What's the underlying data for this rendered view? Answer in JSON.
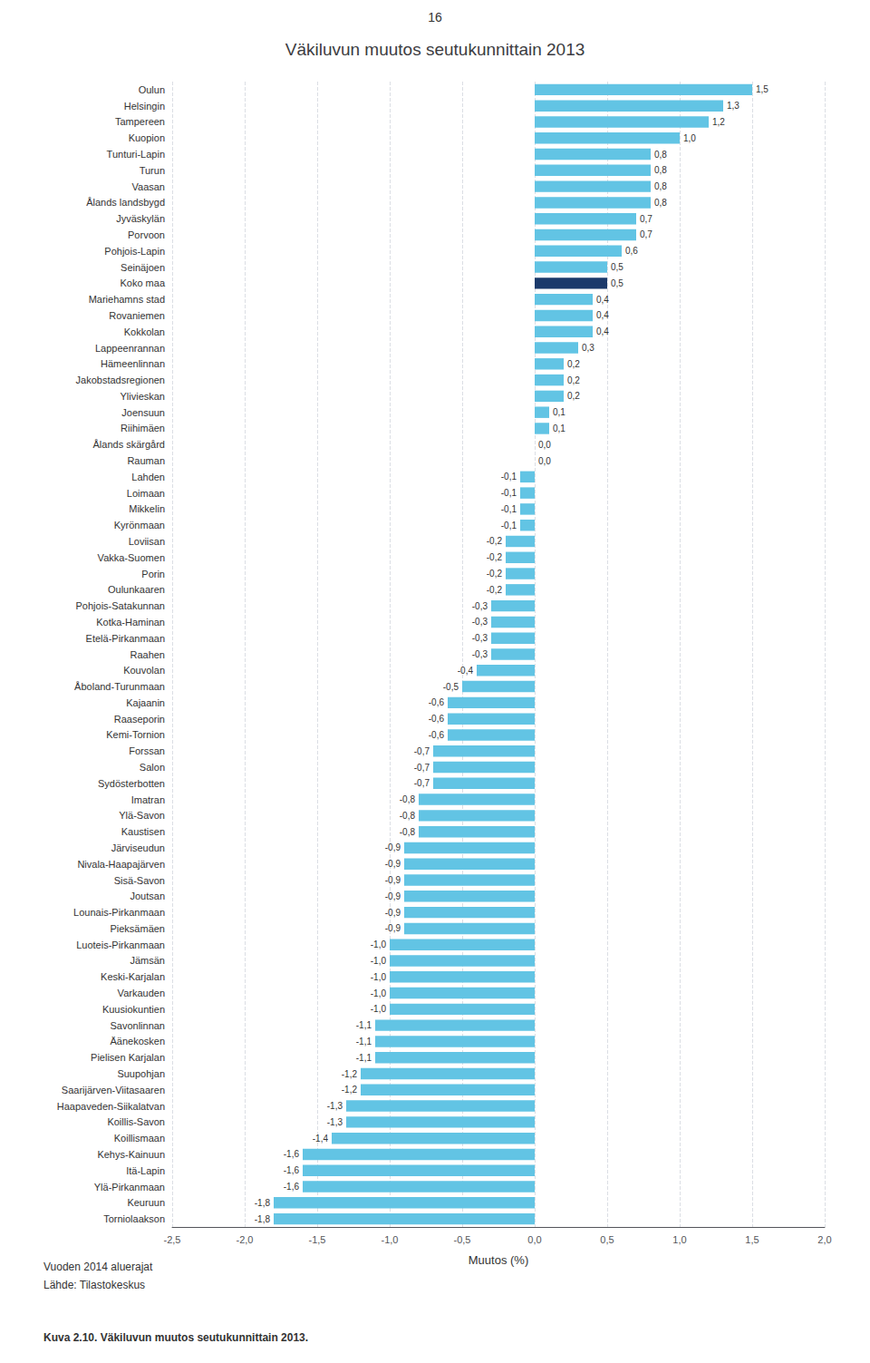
{
  "chart_data": {
    "type": "bar",
    "orientation": "horizontal",
    "title": "Väkiluvun muutos seutukunnittain 2013",
    "xlabel": "Muutos (%)",
    "annotations": [
      "16",
      "Vuoden 2014 aluerajat",
      "Lähde: Tilastokeskus",
      "Kuva 2.10. Väkiluvun muutos seutukunnittain 2013."
    ],
    "categories": [
      "Oulun",
      "Helsingin",
      "Tampereen",
      "Kuopion",
      "Tunturi-Lapin",
      "Turun",
      "Vaasan",
      "Ålands landsbygd",
      "Jyväskylän",
      "Porvoon",
      "Pohjois-Lapin",
      "Seinäjoen",
      "Koko maa",
      "Mariehamns stad",
      "Rovaniemen",
      "Kokkolan",
      "Lappeenrannan",
      "Hämeenlinnan",
      "Jakobstadsregionen",
      "Ylivieskan",
      "Joensuun",
      "Riihimäen",
      "Ålands skärgård",
      "Rauman",
      "Lahden",
      "Loimaan",
      "Mikkelin",
      "Kyrönmaan",
      "Loviisan",
      "Vakka-Suomen",
      "Porin",
      "Oulunkaaren",
      "Pohjois-Satakunnan",
      "Kotka-Haminan",
      "Etelä-Pirkanmaan",
      "Raahen",
      "Kouvolan",
      "Åboland-Turunmaan",
      "Kajaanin",
      "Raaseporin",
      "Kemi-Tornion",
      "Forssan",
      "Salon",
      "Sydösterbotten",
      "Imatran",
      "Ylä-Savon",
      "Kaustisen",
      "Järviseudun",
      "Nivala-Haapajärven",
      "Sisä-Savon",
      "Joutsan",
      "Lounais-Pirkanmaan",
      "Pieksämäen",
      "Luoteis-Pirkanmaan",
      "Jämsän",
      "Keski-Karjalan",
      "Varkauden",
      "Kuusiokuntien",
      "Savonlinnan",
      "Äänekosken",
      "Pielisen Karjalan",
      "Suupohjan",
      "Saarijärven-Viitasaaren",
      "Haapaveden-Siikalatvan",
      "Koillis-Savon",
      "Koillismaan",
      "Kehys-Kainuun",
      "Itä-Lapin",
      "Ylä-Pirkanmaan",
      "Keuruun",
      "Torniolaakson"
    ],
    "values": [
      1.5,
      1.3,
      1.2,
      1.0,
      0.8,
      0.8,
      0.8,
      0.8,
      0.7,
      0.7,
      0.6,
      0.5,
      0.5,
      0.4,
      0.4,
      0.4,
      0.3,
      0.2,
      0.2,
      0.2,
      0.1,
      0.1,
      0.0,
      0.0,
      -0.1,
      -0.1,
      -0.1,
      -0.1,
      -0.2,
      -0.2,
      -0.2,
      -0.2,
      -0.3,
      -0.3,
      -0.3,
      -0.3,
      -0.4,
      -0.5,
      -0.6,
      -0.6,
      -0.6,
      -0.7,
      -0.7,
      -0.7,
      -0.8,
      -0.8,
      -0.8,
      -0.9,
      -0.9,
      -0.9,
      -0.9,
      -0.9,
      -0.9,
      -1.0,
      -1.0,
      -1.0,
      -1.0,
      -1.0,
      -1.1,
      -1.1,
      -1.1,
      -1.2,
      -1.2,
      -1.3,
      -1.3,
      -1.4,
      -1.6,
      -1.6,
      -1.6,
      -1.8,
      -1.8
    ],
    "value_labels": [
      "1,5",
      "1,3",
      "1,2",
      "1,0",
      "0,8",
      "0,8",
      "0,8",
      "0,8",
      "0,7",
      "0,7",
      "0,6",
      "0,5",
      "0,5",
      "0,4",
      "0,4",
      "0,4",
      "0,3",
      "0,2",
      "0,2",
      "0,2",
      "0,1",
      "0,1",
      "0,0",
      "0,0",
      "-0,1",
      "-0,1",
      "-0,1",
      "-0,1",
      "-0,2",
      "-0,2",
      "-0,2",
      "-0,2",
      "-0,3",
      "-0,3",
      "-0,3",
      "-0,3",
      "-0,4",
      "-0,5",
      "-0,6",
      "-0,6",
      "-0,6",
      "-0,7",
      "-0,7",
      "-0,7",
      "-0,8",
      "-0,8",
      "-0,8",
      "-0,9",
      "-0,9",
      "-0,9",
      "-0,9",
      "-0,9",
      "-0,9",
      "-1,0",
      "-1,0",
      "-1,0",
      "-1,0",
      "-1,0",
      "-1,1",
      "-1,1",
      "-1,1",
      "-1,2",
      "-1,2",
      "-1,3",
      "-1,3",
      "-1,4",
      "-1,6",
      "-1,6",
      "-1,6",
      "-1,8",
      "-1,8"
    ],
    "colors": [
      "#62C4E4",
      "#62C4E4",
      "#62C4E4",
      "#62C4E4",
      "#62C4E4",
      "#62C4E4",
      "#62C4E4",
      "#62C4E4",
      "#62C4E4",
      "#62C4E4",
      "#62C4E4",
      "#62C4E4",
      "#1B3A6B",
      "#62C4E4",
      "#62C4E4",
      "#62C4E4",
      "#62C4E4",
      "#62C4E4",
      "#62C4E4",
      "#62C4E4",
      "#62C4E4",
      "#62C4E4",
      "#62C4E4",
      "#62C4E4",
      "#62C4E4",
      "#62C4E4",
      "#62C4E4",
      "#62C4E4",
      "#62C4E4",
      "#62C4E4",
      "#62C4E4",
      "#62C4E4",
      "#62C4E4",
      "#62C4E4",
      "#62C4E4",
      "#62C4E4",
      "#62C4E4",
      "#62C4E4",
      "#62C4E4",
      "#62C4E4",
      "#62C4E4",
      "#62C4E4",
      "#62C4E4",
      "#62C4E4",
      "#62C4E4",
      "#62C4E4",
      "#62C4E4",
      "#62C4E4",
      "#62C4E4",
      "#62C4E4",
      "#62C4E4",
      "#62C4E4",
      "#62C4E4",
      "#62C4E4",
      "#62C4E4",
      "#62C4E4",
      "#62C4E4",
      "#62C4E4",
      "#62C4E4",
      "#62C4E4",
      "#62C4E4",
      "#62C4E4",
      "#62C4E4",
      "#62C4E4",
      "#62C4E4",
      "#62C4E4",
      "#62C4E4",
      "#62C4E4",
      "#62C4E4",
      "#62C4E4",
      "#62C4E4"
    ],
    "xlim": [
      -2.5,
      2.0
    ],
    "xticks": [
      {
        "value": -2.5,
        "label": "-2,5"
      },
      {
        "value": -2.0,
        "label": "-2,0"
      },
      {
        "value": -1.5,
        "label": "-1,5"
      },
      {
        "value": -1.0,
        "label": "-1,0"
      },
      {
        "value": -0.5,
        "label": "-0,5"
      },
      {
        "value": 0.0,
        "label": "0,0"
      },
      {
        "value": 0.5,
        "label": "0,5"
      },
      {
        "value": 1.0,
        "label": "1,0"
      },
      {
        "value": 1.5,
        "label": "1,5"
      },
      {
        "value": 2.0,
        "label": "2,0"
      }
    ],
    "grid": true,
    "data_labels": true
  }
}
